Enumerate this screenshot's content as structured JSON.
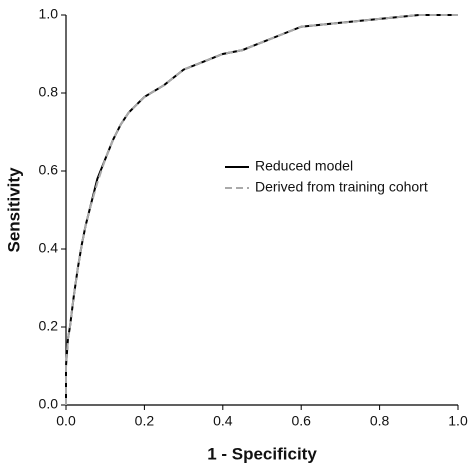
{
  "chart_data": {
    "type": "line",
    "xlabel": "1 - Specificity",
    "ylabel": "Sensitivity",
    "x": [
      0,
      0,
      0.005,
      0.01,
      0.02,
      0.03,
      0.04,
      0.05,
      0.06,
      0.08,
      0.1,
      0.12,
      0.14,
      0.16,
      0.18,
      0.2,
      0.25,
      0.3,
      0.35,
      0.4,
      0.45,
      0.5,
      0.55,
      0.6,
      0.7,
      0.8,
      0.9,
      1.0
    ],
    "series": [
      {
        "name": "Reduced model",
        "color": "#000000",
        "style": "solid",
        "values": [
          0,
          0.1,
          0.17,
          0.2,
          0.28,
          0.35,
          0.41,
          0.46,
          0.5,
          0.58,
          0.63,
          0.68,
          0.72,
          0.75,
          0.77,
          0.79,
          0.82,
          0.86,
          0.88,
          0.9,
          0.91,
          0.93,
          0.95,
          0.97,
          0.98,
          0.99,
          1.0,
          1.0
        ]
      },
      {
        "name": "Derived from training cohort",
        "color": "#aaaaaa",
        "style": "dashed",
        "values": [
          0,
          0.1,
          0.17,
          0.2,
          0.28,
          0.35,
          0.41,
          0.46,
          0.5,
          0.57,
          0.63,
          0.68,
          0.72,
          0.75,
          0.77,
          0.79,
          0.82,
          0.86,
          0.88,
          0.9,
          0.91,
          0.93,
          0.95,
          0.97,
          0.98,
          0.99,
          1.0,
          1.0
        ]
      }
    ],
    "xlim": [
      0,
      1
    ],
    "ylim": [
      0,
      1
    ],
    "xticks": [
      {
        "value": 0,
        "label": "0.0"
      },
      {
        "value": 0.2,
        "label": "0.2"
      },
      {
        "value": 0.4,
        "label": "0.4"
      },
      {
        "value": 0.6,
        "label": "0.6"
      },
      {
        "value": 0.8,
        "label": "0.8"
      },
      {
        "value": 1,
        "label": "1.0"
      }
    ],
    "yticks": [
      {
        "value": 0,
        "label": "0.0"
      },
      {
        "value": 0.2,
        "label": "0.2"
      },
      {
        "value": 0.4,
        "label": "0.4"
      },
      {
        "value": 0.6,
        "label": "0.6"
      },
      {
        "value": 0.8,
        "label": "0.8"
      },
      {
        "value": 1,
        "label": "1.0"
      }
    ],
    "grid": false,
    "legend": "center-right"
  }
}
